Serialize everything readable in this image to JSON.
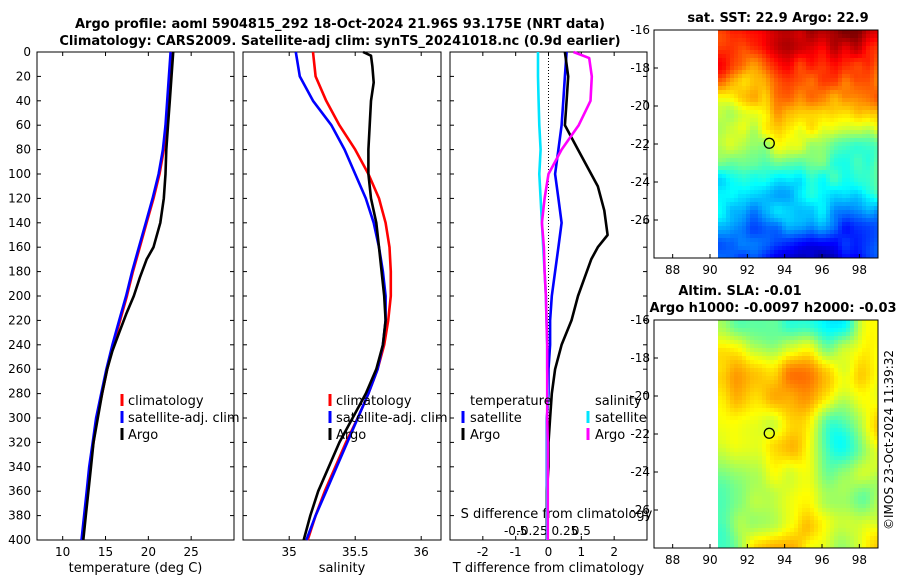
{
  "title_line1": "Argo profile: aoml 5904815_292 18-Oct-2024 21.96S 93.175E (NRT data)",
  "title_line2": "Climatology: CARS2009. Satellite-adj clim: synTS_20241018.nc (0.9d earlier)",
  "side_label": "©IMOS 23-Oct-2024 11:39:32",
  "colors": {
    "climatology": "#ff0000",
    "satellite": "#0000ff",
    "argo": "#000000",
    "sal_satellite": "#00e5ff",
    "sal_argo": "#ff00ff"
  },
  "depth_ticks": [
    "0",
    "20",
    "40",
    "60",
    "80",
    "100",
    "120",
    "140",
    "160",
    "180",
    "200",
    "220",
    "240",
    "260",
    "280",
    "300",
    "320",
    "340",
    "360",
    "380",
    "400"
  ],
  "chart_data": [
    {
      "type": "line",
      "id": "temperature",
      "xlabel": "temperature (deg C)",
      "ylabel": "depth",
      "xlim": [
        7,
        30
      ],
      "ylim": [
        0,
        400
      ],
      "y_inverted": true,
      "xticks": [
        10,
        15,
        20,
        25
      ],
      "xtick_labels": [
        "10",
        "15",
        "20",
        "25"
      ],
      "legend": [
        "climatology",
        "satellite-adj. clim",
        "Argo"
      ],
      "series": [
        {
          "name": "climatology",
          "color": "#ff0000",
          "points": [
            [
              22.8,
              0
            ],
            [
              22.6,
              20
            ],
            [
              22.4,
              40
            ],
            [
              22.2,
              60
            ],
            [
              21.8,
              80
            ],
            [
              21.3,
              100
            ],
            [
              20.6,
              120
            ],
            [
              19.8,
              140
            ],
            [
              19.0,
              160
            ],
            [
              18.2,
              180
            ],
            [
              17.5,
              200
            ],
            [
              16.7,
              220
            ],
            [
              15.9,
              240
            ],
            [
              15.2,
              260
            ],
            [
              14.6,
              280
            ],
            [
              14.0,
              300
            ],
            [
              13.6,
              320
            ],
            [
              13.2,
              340
            ],
            [
              12.9,
              360
            ],
            [
              12.6,
              380
            ],
            [
              12.3,
              400
            ]
          ]
        },
        {
          "name": "satellite-adj. clim",
          "color": "#0000ff",
          "points": [
            [
              22.6,
              0
            ],
            [
              22.4,
              20
            ],
            [
              22.2,
              40
            ],
            [
              22.0,
              60
            ],
            [
              21.7,
              80
            ],
            [
              21.2,
              100
            ],
            [
              20.5,
              120
            ],
            [
              19.7,
              140
            ],
            [
              18.9,
              160
            ],
            [
              18.1,
              180
            ],
            [
              17.4,
              200
            ],
            [
              16.6,
              220
            ],
            [
              15.8,
              240
            ],
            [
              15.1,
              260
            ],
            [
              14.5,
              280
            ],
            [
              13.9,
              300
            ],
            [
              13.5,
              320
            ],
            [
              13.1,
              340
            ],
            [
              12.8,
              360
            ],
            [
              12.5,
              380
            ],
            [
              12.2,
              400
            ]
          ]
        },
        {
          "name": "Argo",
          "color": "#000000",
          "points": [
            [
              22.9,
              0
            ],
            [
              22.7,
              20
            ],
            [
              22.5,
              40
            ],
            [
              22.3,
              60
            ],
            [
              22.1,
              80
            ],
            [
              22.0,
              100
            ],
            [
              21.8,
              120
            ],
            [
              21.4,
              140
            ],
            [
              20.6,
              160
            ],
            [
              19.8,
              170
            ],
            [
              19.0,
              185
            ],
            [
              18.3,
              200
            ],
            [
              17.4,
              215
            ],
            [
              16.6,
              230
            ],
            [
              15.8,
              245
            ],
            [
              15.2,
              260
            ],
            [
              14.6,
              280
            ],
            [
              14.1,
              300
            ],
            [
              13.6,
              320
            ],
            [
              13.3,
              340
            ],
            [
              13.0,
              360
            ],
            [
              12.7,
              380
            ],
            [
              12.4,
              400
            ]
          ]
        }
      ]
    },
    {
      "type": "line",
      "id": "salinity",
      "xlabel": "salinity",
      "xlim": [
        34.65,
        36.15
      ],
      "ylim": [
        0,
        400
      ],
      "y_inverted": true,
      "xticks": [
        35,
        35.5,
        36
      ],
      "xtick_labels": [
        "35",
        "35.5",
        "36"
      ],
      "legend": [
        "climatology",
        "satellite-adj. clim",
        "Argo"
      ],
      "series": [
        {
          "name": "climatology",
          "color": "#ff0000",
          "points": [
            [
              35.18,
              0
            ],
            [
              35.2,
              20
            ],
            [
              35.28,
              40
            ],
            [
              35.38,
              60
            ],
            [
              35.5,
              80
            ],
            [
              35.6,
              100
            ],
            [
              35.68,
              120
            ],
            [
              35.73,
              140
            ],
            [
              35.76,
              160
            ],
            [
              35.77,
              180
            ],
            [
              35.77,
              200
            ],
            [
              35.75,
              220
            ],
            [
              35.72,
              240
            ],
            [
              35.67,
              260
            ],
            [
              35.6,
              280
            ],
            [
              35.52,
              300
            ],
            [
              35.43,
              320
            ],
            [
              35.35,
              340
            ],
            [
              35.27,
              360
            ],
            [
              35.2,
              380
            ],
            [
              35.14,
              400
            ]
          ]
        },
        {
          "name": "satellite-adj. clim",
          "color": "#0000ff",
          "points": [
            [
              35.05,
              0
            ],
            [
              35.08,
              20
            ],
            [
              35.18,
              40
            ],
            [
              35.32,
              60
            ],
            [
              35.42,
              80
            ],
            [
              35.5,
              100
            ],
            [
              35.58,
              120
            ],
            [
              35.64,
              140
            ],
            [
              35.68,
              160
            ],
            [
              35.71,
              180
            ],
            [
              35.73,
              200
            ],
            [
              35.73,
              220
            ],
            [
              35.71,
              240
            ],
            [
              35.67,
              260
            ],
            [
              35.6,
              280
            ],
            [
              35.52,
              300
            ],
            [
              35.44,
              320
            ],
            [
              35.36,
              340
            ],
            [
              35.28,
              360
            ],
            [
              35.2,
              380
            ],
            [
              35.13,
              400
            ]
          ]
        },
        {
          "name": "Argo",
          "color": "#000000",
          "points": [
            [
              35.56,
              0
            ],
            [
              35.62,
              3
            ],
            [
              35.63,
              12
            ],
            [
              35.64,
              25
            ],
            [
              35.62,
              40
            ],
            [
              35.61,
              60
            ],
            [
              35.6,
              80
            ],
            [
              35.6,
              100
            ],
            [
              35.62,
              120
            ],
            [
              35.66,
              140
            ],
            [
              35.68,
              160
            ],
            [
              35.7,
              180
            ],
            [
              35.72,
              200
            ],
            [
              35.73,
              220
            ],
            [
              35.71,
              240
            ],
            [
              35.66,
              260
            ],
            [
              35.58,
              280
            ],
            [
              35.48,
              300
            ],
            [
              35.38,
              320
            ],
            [
              35.3,
              340
            ],
            [
              35.22,
              360
            ],
            [
              35.16,
              380
            ],
            [
              35.11,
              400
            ]
          ]
        }
      ]
    },
    {
      "type": "line",
      "id": "difference",
      "xlabel": "T difference from climatology",
      "xlabel_top": "S difference from climatology",
      "xlim": [
        -3,
        3
      ],
      "ylim": [
        0,
        400
      ],
      "y_inverted": true,
      "xticks": [
        -2,
        -1,
        0,
        1,
        2
      ],
      "xtick_labels": [
        "-2",
        "-1",
        "0",
        "1",
        "2"
      ],
      "xticks_s": [
        -0.5,
        -0.25,
        0.25,
        0.5
      ],
      "xtick_labels_s": [
        "-0.5",
        "-0.25",
        "0.25",
        "0.5"
      ],
      "s_scale": 0.5,
      "legend": [
        "temperature",
        "satellite",
        "Argo",
        "salinity",
        "satellite",
        "Argo"
      ],
      "series": [
        {
          "name": "T satellite",
          "color": "#0000ff",
          "points": [
            [
              0.55,
              0
            ],
            [
              0.5,
              20
            ],
            [
              0.45,
              40
            ],
            [
              0.4,
              60
            ],
            [
              0.3,
              80
            ],
            [
              0.2,
              100
            ],
            [
              0.3,
              120
            ],
            [
              0.4,
              140
            ],
            [
              0.3,
              160
            ],
            [
              0.2,
              180
            ],
            [
              0.1,
              200
            ],
            [
              0.05,
              220
            ],
            [
              0.05,
              240
            ],
            [
              0.0,
              260
            ],
            [
              0.0,
              280
            ],
            [
              -0.05,
              300
            ],
            [
              -0.05,
              320
            ],
            [
              -0.05,
              340
            ],
            [
              -0.05,
              360
            ],
            [
              -0.05,
              380
            ],
            [
              -0.05,
              400
            ]
          ]
        },
        {
          "name": "T Argo",
          "color": "#000000",
          "points": [
            [
              0.5,
              0
            ],
            [
              0.6,
              20
            ],
            [
              0.55,
              40
            ],
            [
              0.5,
              60
            ],
            [
              0.9,
              80
            ],
            [
              1.5,
              110
            ],
            [
              1.7,
              130
            ],
            [
              1.8,
              150
            ],
            [
              1.5,
              160
            ],
            [
              1.3,
              170
            ],
            [
              1.1,
              185
            ],
            [
              0.9,
              200
            ],
            [
              0.7,
              220
            ],
            [
              0.4,
              240
            ],
            [
              0.2,
              260
            ],
            [
              0.1,
              280
            ],
            [
              0.05,
              300
            ],
            [
              0.0,
              320
            ],
            [
              0.0,
              340
            ],
            [
              -0.05,
              360
            ],
            [
              -0.05,
              380
            ],
            [
              -0.05,
              400
            ]
          ]
        },
        {
          "name": "S satellite",
          "color": "#00e5ff",
          "points": [
            [
              -0.16,
              0
            ],
            [
              -0.16,
              20
            ],
            [
              -0.15,
              40
            ],
            [
              -0.14,
              60
            ],
            [
              -0.12,
              80
            ],
            [
              -0.14,
              100
            ],
            [
              -0.12,
              120
            ],
            [
              -0.1,
              140
            ],
            [
              -0.08,
              160
            ],
            [
              -0.06,
              180
            ],
            [
              -0.04,
              200
            ],
            [
              -0.03,
              220
            ],
            [
              -0.02,
              240
            ],
            [
              -0.02,
              260
            ],
            [
              -0.01,
              280
            ],
            [
              -0.02,
              300
            ],
            [
              -0.02,
              320
            ],
            [
              -0.02,
              340
            ],
            [
              -0.02,
              360
            ],
            [
              -0.02,
              380
            ],
            [
              -0.02,
              400
            ]
          ]
        },
        {
          "name": "S Argo",
          "color": "#ff00ff",
          "points": [
            [
              0.38,
              0
            ],
            [
              0.62,
              5
            ],
            [
              0.66,
              20
            ],
            [
              0.64,
              40
            ],
            [
              0.46,
              60
            ],
            [
              0.2,
              80
            ],
            [
              0.0,
              100
            ],
            [
              -0.06,
              120
            ],
            [
              -0.1,
              140
            ],
            [
              -0.07,
              160
            ],
            [
              -0.06,
              180
            ],
            [
              -0.04,
              200
            ],
            [
              -0.03,
              220
            ],
            [
              -0.02,
              240
            ],
            [
              -0.02,
              260
            ],
            [
              -0.02,
              280
            ],
            [
              -0.02,
              300
            ],
            [
              -0.01,
              320
            ],
            [
              -0.01,
              340
            ],
            [
              -0.01,
              360
            ],
            [
              -0.01,
              380
            ],
            [
              -0.01,
              400
            ]
          ]
        }
      ]
    },
    {
      "type": "heatmap",
      "id": "sst_map",
      "title": "sat. SST: 22.9 Argo: 22.9",
      "xlim": [
        87,
        99
      ],
      "ylim": [
        -28,
        -16
      ],
      "xtick_labels": [
        "88",
        "90",
        "92",
        "94",
        "96",
        "98"
      ],
      "ytick_labels": [
        "-16",
        "-18",
        "-20",
        "-22",
        "-24",
        "-26"
      ],
      "marker": [
        93.175,
        -21.96
      ]
    },
    {
      "type": "heatmap",
      "id": "sla_map",
      "title": "Altim. SLA: -0.01",
      "subtitle": "Argo h1000: -0.0097 h2000: -0.03",
      "xlim": [
        87,
        99
      ],
      "ylim": [
        -28,
        -16
      ],
      "xtick_labels": [
        "88",
        "90",
        "92",
        "94",
        "96",
        "98"
      ],
      "ytick_labels": [
        "-16",
        "-18",
        "-20",
        "-22",
        "-24",
        "-26"
      ],
      "marker": [
        93.175,
        -21.96
      ]
    }
  ]
}
